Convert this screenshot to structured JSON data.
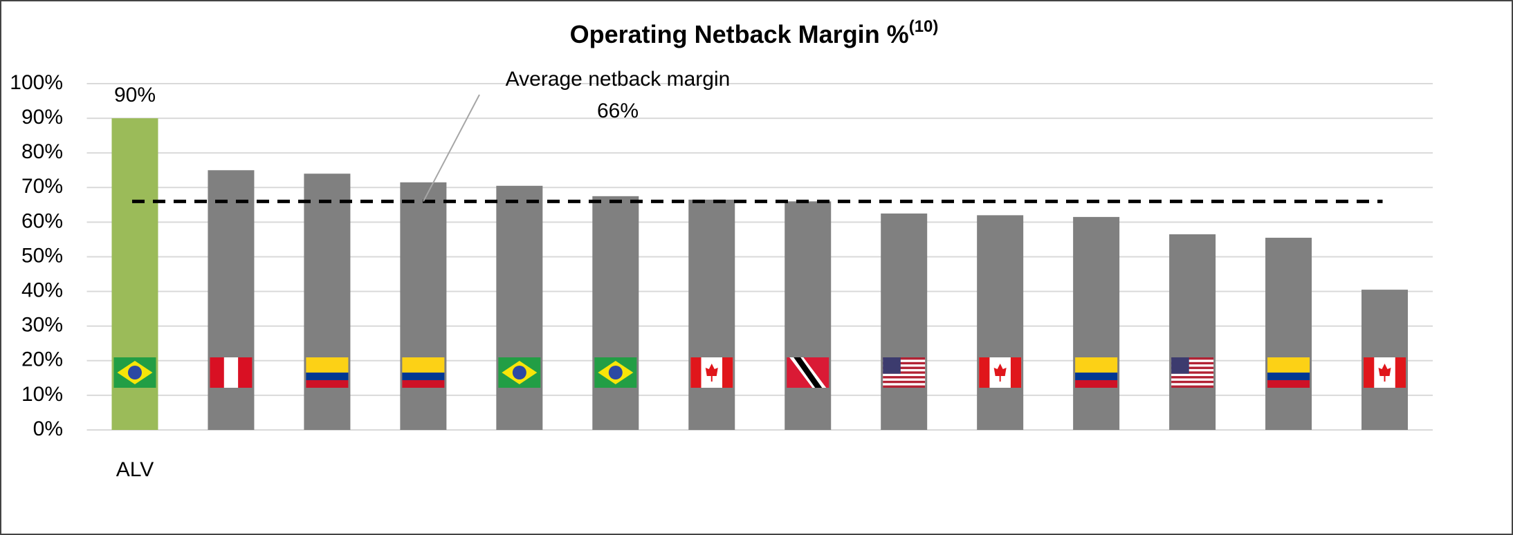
{
  "chart_data": {
    "type": "bar",
    "title": "Operating Netback Margin %",
    "title_superscript": "(10)",
    "categories": [
      "ALV",
      null,
      null,
      null,
      null,
      null,
      null,
      null,
      null,
      null,
      null,
      null,
      null,
      null
    ],
    "values": [
      90,
      75,
      74,
      71.5,
      70.5,
      67.5,
      66.5,
      66,
      62.5,
      62,
      61.5,
      56.5,
      55.5,
      40.5
    ],
    "value_labels": [
      "90%",
      null,
      null,
      null,
      null,
      null,
      null,
      null,
      null,
      null,
      null,
      null,
      null,
      null
    ],
    "colors": [
      "#9bbb59",
      "#808080",
      "#808080",
      "#808080",
      "#808080",
      "#808080",
      "#808080",
      "#808080",
      "#808080",
      "#808080",
      "#808080",
      "#808080",
      "#808080",
      "#808080"
    ],
    "average": {
      "label": "Average netback margin",
      "value": 66,
      "value_label": "66%"
    },
    "ylim": [
      0,
      100
    ],
    "yticks": [
      {
        "value": 0,
        "label": "0%"
      },
      {
        "value": 10,
        "label": "10%"
      },
      {
        "value": 20,
        "label": "20%"
      },
      {
        "value": 30,
        "label": "30%"
      },
      {
        "value": 40,
        "label": "40%"
      },
      {
        "value": 50,
        "label": "50%"
      },
      {
        "value": 60,
        "label": "60%"
      },
      {
        "value": 70,
        "label": "70%"
      },
      {
        "value": 80,
        "label": "80%"
      },
      {
        "value": 90,
        "label": "90%"
      },
      {
        "value": 100,
        "label": "100%"
      }
    ],
    "grid": true
  }
}
